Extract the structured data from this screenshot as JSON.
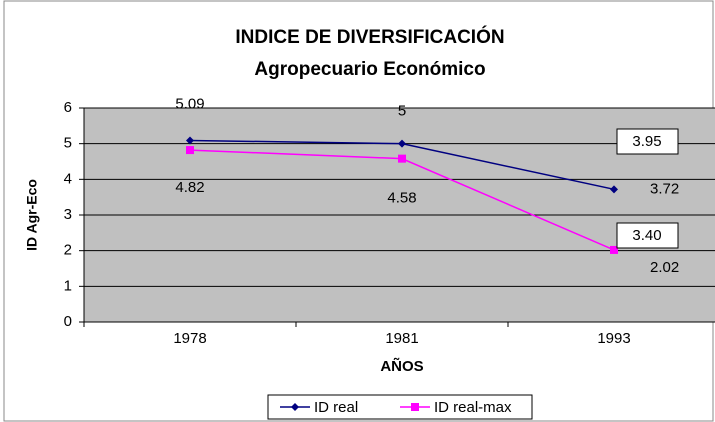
{
  "chart_data": {
    "type": "line",
    "title": "INDICE DE DIVERSIFICACIÓN",
    "subtitle": "Agropecuario Económico",
    "y_label": "ID Agr-Eco",
    "x_label": "AÑOS",
    "categories": [
      "1978",
      "1981",
      "1993"
    ],
    "series": [
      {
        "name": "ID real",
        "color": "#000080",
        "values": [
          5.09,
          5,
          3.72
        ]
      },
      {
        "name": "ID real-max",
        "color": "#ff00ff",
        "values": [
          4.82,
          4.58,
          2.02
        ]
      }
    ],
    "annotations": [
      "3.95",
      "3.40"
    ],
    "ylim": [
      0,
      6
    ],
    "yticks": [
      0,
      1,
      2,
      3,
      4,
      5,
      6
    ],
    "grid": true,
    "legend": "bottom"
  }
}
